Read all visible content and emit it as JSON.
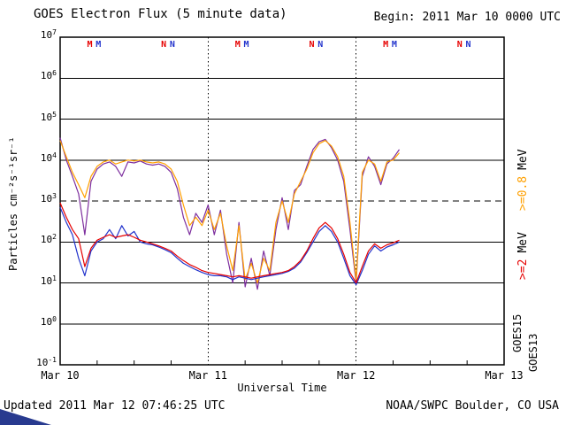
{
  "header": {
    "title": "GOES Electron Flux (5 minute data)",
    "begin": "Begin: 2011 Mar 10 0000 UTC"
  },
  "footer": {
    "updated": "Updated 2011 Mar 12 07:46:25 UTC",
    "credit": "NOAA/SWPC Boulder, CO USA"
  },
  "chart_data": {
    "type": "line",
    "title": "GOES Electron Flux (5 minute data)",
    "xlabel": "Universal Time",
    "ylabel": "Particles cm⁻²s⁻¹sr⁻¹",
    "y_scale": "log10",
    "y_range": [
      0.1,
      10000000
    ],
    "y_tick_exponents": [
      7,
      6,
      5,
      4,
      3,
      2,
      1,
      0,
      -1
    ],
    "x_range_hours": [
      0,
      72
    ],
    "x_ticks": [
      {
        "hour": 0,
        "label": "Mar 10"
      },
      {
        "hour": 24,
        "label": "Mar 11"
      },
      {
        "hour": 48,
        "label": "Mar 12"
      },
      {
        "hour": 72,
        "label": "Mar 13"
      }
    ],
    "x_minor_tick_step_hours": 6,
    "day_boundaries_hours": [
      24,
      48
    ],
    "threshold_flux": 1000,
    "grid": {
      "horizontal": "solid line at each decade",
      "threshold_style": "dashed at 1e3",
      "vertical": "dotted at day boundaries"
    },
    "legend_position": "right margin, rotated",
    "right_labels": {
      "e08": ">=0.8",
      "e2": ">=2",
      "mev": "MeV",
      "goes15": "GOES15",
      "goes13": "GOES13"
    },
    "sample_step_hours": 1,
    "series": [
      {
        "name": "GOES13 >=0.8 MeV",
        "color": "#7D2E9E",
        "values": [
          35000,
          10000,
          4000,
          1500,
          150,
          3000,
          6000,
          8000,
          9000,
          7000,
          4000,
          9000,
          8500,
          9500,
          8000,
          7500,
          8000,
          7000,
          5000,
          2000,
          400,
          150,
          500,
          300,
          800,
          150,
          600,
          50,
          10,
          300,
          8,
          40,
          7,
          60,
          15,
          200,
          1200,
          200,
          1800,
          2500,
          7000,
          18000,
          28000,
          32000,
          20000,
          10000,
          3000,
          200,
          10,
          4000,
          12000,
          7000,
          2500,
          8000,
          11000,
          18000
        ]
      },
      {
        "name": "GOES15 >=0.8 MeV",
        "color": "#FFA000",
        "values": [
          30000,
          12000,
          5000,
          2500,
          1200,
          4000,
          7000,
          9000,
          10000,
          8000,
          9000,
          10000,
          9500,
          10000,
          9000,
          8500,
          9000,
          8000,
          6000,
          3000,
          800,
          250,
          400,
          250,
          600,
          200,
          500,
          80,
          20,
          250,
          12,
          30,
          10,
          40,
          20,
          300,
          1000,
          300,
          1500,
          3000,
          6000,
          15000,
          25000,
          30000,
          22000,
          12000,
          4000,
          300,
          12,
          5000,
          10000,
          8000,
          3000,
          9000,
          10000,
          15000
        ]
      },
      {
        "name": "GOES13 >=2 MeV",
        "color": "#2233CC",
        "values": [
          700,
          300,
          150,
          40,
          15,
          60,
          100,
          120,
          200,
          120,
          250,
          140,
          180,
          100,
          90,
          85,
          75,
          65,
          55,
          40,
          30,
          25,
          21,
          18,
          16,
          15,
          15,
          14,
          12,
          14,
          13,
          12,
          13,
          14,
          15,
          16,
          17,
          19,
          23,
          32,
          55,
          100,
          180,
          250,
          180,
          100,
          40,
          15,
          9,
          20,
          50,
          80,
          60,
          75,
          85,
          100
        ]
      },
      {
        "name": "GOES15 >=2 MeV",
        "color": "#E60000",
        "values": [
          900,
          400,
          200,
          120,
          25,
          70,
          110,
          130,
          150,
          130,
          140,
          150,
          130,
          110,
          100,
          90,
          80,
          70,
          60,
          45,
          35,
          28,
          24,
          20,
          18,
          17,
          16,
          15,
          14,
          15,
          14,
          13,
          14,
          15,
          16,
          17,
          18,
          20,
          25,
          35,
          60,
          120,
          220,
          300,
          220,
          120,
          50,
          18,
          10,
          25,
          60,
          90,
          70,
          85,
          95,
          110
        ]
      }
    ],
    "markers": [
      {
        "letter": "M",
        "hour": 4.8,
        "satellite": "GOES15",
        "color": "#E60000"
      },
      {
        "letter": "M",
        "hour": 6.2,
        "satellite": "GOES13",
        "color": "#2233CC"
      },
      {
        "letter": "N",
        "hour": 16.8,
        "satellite": "GOES15",
        "color": "#E60000"
      },
      {
        "letter": "N",
        "hour": 18.2,
        "satellite": "GOES13",
        "color": "#2233CC"
      },
      {
        "letter": "M",
        "hour": 28.8,
        "satellite": "GOES15",
        "color": "#E60000"
      },
      {
        "letter": "M",
        "hour": 30.2,
        "satellite": "GOES13",
        "color": "#2233CC"
      },
      {
        "letter": "N",
        "hour": 40.8,
        "satellite": "GOES15",
        "color": "#E60000"
      },
      {
        "letter": "N",
        "hour": 42.2,
        "satellite": "GOES13",
        "color": "#2233CC"
      },
      {
        "letter": "M",
        "hour": 52.8,
        "satellite": "GOES15",
        "color": "#E60000"
      },
      {
        "letter": "M",
        "hour": 54.2,
        "satellite": "GOES13",
        "color": "#2233CC"
      },
      {
        "letter": "N",
        "hour": 64.8,
        "satellite": "GOES15",
        "color": "#E60000"
      },
      {
        "letter": "N",
        "hour": 66.2,
        "satellite": "GOES13",
        "color": "#2233CC"
      }
    ]
  }
}
